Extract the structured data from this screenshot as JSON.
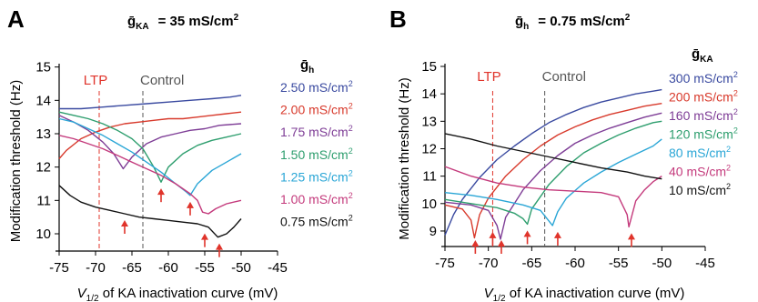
{
  "chart_data": [
    {
      "panel_letter": "A",
      "title_symbol": "ḡ",
      "title_sub": "KA",
      "title_rest": "= 35 mS/cm",
      "title_sup": "2",
      "type": "line",
      "xlabel_italic": "V",
      "xlabel_sub": "1/2",
      "xlabel_rest": " of KA inactivation curve (mV)",
      "ylabel": "Modification threshold (Hz)",
      "xlim": [
        -75,
        -45
      ],
      "ylim": [
        9.7,
        15.1
      ],
      "xticks": [
        -75,
        -70,
        -65,
        -60,
        -55,
        -50,
        -45
      ],
      "yticks": [
        10,
        11,
        12,
        13,
        14,
        15
      ],
      "xtick_labels": [
        "-75",
        "-70",
        "-65",
        "-60",
        "-55",
        "-50",
        "-45"
      ],
      "ytick_labels": [
        "10",
        "11",
        "12",
        "13",
        "14",
        "15"
      ],
      "legend_header_symbol": "ḡ",
      "legend_header_sub": "h",
      "markers": [
        {
          "label": "LTP",
          "x": -69.5,
          "color": "#e0342b"
        },
        {
          "label": "Control",
          "x": -63.5,
          "color": "#555555"
        }
      ],
      "arrows_x": [
        -66,
        -61,
        -57,
        -55,
        -53
      ],
      "arrow_color": "#e0342b",
      "series": [
        {
          "name": "2.50 mS/cm",
          "sup": "2",
          "color": "#3a4aa0",
          "x": [
            -75,
            -72,
            -69,
            -66,
            -63,
            -60,
            -57,
            -54,
            -51.5,
            -50
          ],
          "y": [
            13.75,
            13.75,
            13.8,
            13.85,
            13.9,
            13.95,
            14.0,
            14.05,
            14.1,
            14.15
          ]
        },
        {
          "name": "2.00 mS/cm",
          "sup": "2",
          "color": "#d83a2c",
          "x": [
            -75,
            -74,
            -72,
            -70,
            -68,
            -66,
            -64,
            -62,
            -60,
            -58,
            -56,
            -54,
            -52,
            -50
          ],
          "y": [
            12.25,
            12.5,
            12.85,
            13.05,
            13.2,
            13.3,
            13.35,
            13.4,
            13.45,
            13.45,
            13.5,
            13.55,
            13.6,
            13.65
          ]
        },
        {
          "name": "1.75 mS/cm",
          "sup": "2",
          "color": "#7e3d96",
          "x": [
            -75,
            -73,
            -71,
            -69,
            -67.5,
            -66.2,
            -65,
            -63,
            -61,
            -59,
            -57,
            -55,
            -53,
            -50
          ],
          "y": [
            13.55,
            13.35,
            13.1,
            12.75,
            12.4,
            11.95,
            12.3,
            12.7,
            12.9,
            13.0,
            13.1,
            13.15,
            13.25,
            13.3
          ]
        },
        {
          "name": "1.50 mS/cm",
          "sup": "2",
          "color": "#2e9e6e",
          "x": [
            -75,
            -73,
            -71,
            -69,
            -67,
            -65,
            -63.5,
            -62,
            -61,
            -60,
            -58,
            -56,
            -54,
            -52,
            -50
          ],
          "y": [
            13.65,
            13.55,
            13.45,
            13.3,
            13.1,
            12.85,
            12.55,
            12.0,
            11.55,
            12.0,
            12.4,
            12.65,
            12.8,
            12.9,
            13.0
          ]
        },
        {
          "name": "1.25 mS/cm",
          "sup": "2",
          "color": "#2aa6d6",
          "x": [
            -75,
            -73,
            -71,
            -69,
            -67,
            -65,
            -63,
            -61,
            -59,
            -57.5,
            -57,
            -56,
            -54,
            -52,
            -50
          ],
          "y": [
            13.45,
            13.35,
            13.15,
            12.95,
            12.7,
            12.45,
            12.15,
            11.85,
            11.5,
            11.25,
            11.15,
            11.5,
            11.9,
            12.15,
            12.4
          ]
        },
        {
          "name": "1.00 mS/cm",
          "sup": "2",
          "color": "#c43a7c",
          "x": [
            -75,
            -73,
            -71,
            -69,
            -67,
            -65,
            -63,
            -61,
            -59,
            -57,
            -56,
            -55.3,
            -54.5,
            -53.5,
            -52,
            -50
          ],
          "y": [
            12.95,
            12.85,
            12.7,
            12.55,
            12.35,
            12.15,
            11.95,
            11.75,
            11.5,
            11.2,
            11.0,
            10.65,
            10.6,
            10.75,
            10.9,
            11.0
          ]
        },
        {
          "name": "0.75 mS/cm",
          "sup": "2",
          "color": "#111111",
          "x": [
            -75,
            -73.5,
            -72,
            -70,
            -68,
            -66,
            -64,
            -62,
            -60,
            -58,
            -56,
            -54.5,
            -53.2,
            -52,
            -51,
            -50
          ],
          "y": [
            11.45,
            11.15,
            10.95,
            10.8,
            10.7,
            10.6,
            10.5,
            10.45,
            10.4,
            10.35,
            10.3,
            10.2,
            9.9,
            10.0,
            10.2,
            10.45
          ]
        }
      ]
    },
    {
      "panel_letter": "B",
      "title_symbol": "ḡ",
      "title_sub": "h",
      "title_rest": "= 0.75 mS/cm",
      "title_sup": "2",
      "type": "line",
      "xlabel_italic": "V",
      "xlabel_sub": "1/2",
      "xlabel_rest": " of KA inactivation curve (mV)",
      "ylabel": "Modification threshold (Hz)",
      "xlim": [
        -75,
        -45
      ],
      "ylim": [
        8.7,
        15.1
      ],
      "xticks": [
        -75,
        -70,
        -65,
        -60,
        -55,
        -50,
        -45
      ],
      "yticks": [
        9,
        10,
        11,
        12,
        13,
        14,
        15
      ],
      "xtick_labels": [
        "-75",
        "-70",
        "-65",
        "-60",
        "-55",
        "-50",
        "-45"
      ],
      "ytick_labels": [
        "9",
        "10",
        "11",
        "12",
        "13",
        "14",
        "15"
      ],
      "legend_header_symbol": "ḡ",
      "legend_header_sub": "KA",
      "markers": [
        {
          "label": "LTP",
          "x": -69.5,
          "color": "#e0342b"
        },
        {
          "label": "Control",
          "x": -63.5,
          "color": "#555555"
        }
      ],
      "arrows_x": [
        -71.5,
        -69.5,
        -68.5,
        -65.5,
        -62,
        -53.5
      ],
      "arrow_color": "#e0342b",
      "series": [
        {
          "name": "300 mS/cm",
          "sup": "2",
          "color": "#3a4aa0",
          "x": [
            -75,
            -74,
            -73,
            -72,
            -71,
            -69,
            -67,
            -65,
            -63,
            -61,
            -59,
            -57,
            -55,
            -53,
            -51,
            -50
          ],
          "y": [
            8.85,
            9.6,
            10.15,
            10.55,
            10.95,
            11.6,
            12.1,
            12.55,
            12.95,
            13.25,
            13.5,
            13.7,
            13.85,
            14.0,
            14.1,
            14.15
          ]
        },
        {
          "name": "200 mS/cm",
          "sup": "2",
          "color": "#d83a2c",
          "x": [
            -75,
            -73,
            -72,
            -71.6,
            -71,
            -70,
            -68,
            -66,
            -64,
            -62,
            -60,
            -58,
            -56,
            -54,
            -52,
            -50
          ],
          "y": [
            9.95,
            9.8,
            9.4,
            8.75,
            9.6,
            10.2,
            11.0,
            11.6,
            12.1,
            12.5,
            12.8,
            13.05,
            13.25,
            13.4,
            13.55,
            13.65
          ]
        },
        {
          "name": "160 mS/cm",
          "sup": "2",
          "color": "#7e3d96",
          "x": [
            -75,
            -72,
            -70,
            -69,
            -68.6,
            -68,
            -66,
            -64,
            -62,
            -60,
            -58,
            -56,
            -54,
            -52,
            -50
          ],
          "y": [
            10.05,
            9.95,
            9.75,
            9.2,
            8.7,
            9.5,
            10.5,
            11.2,
            11.75,
            12.2,
            12.5,
            12.75,
            12.95,
            13.15,
            13.3
          ]
        },
        {
          "name": "120 mS/cm",
          "sup": "2",
          "color": "#2e9e6e",
          "x": [
            -75,
            -72,
            -69,
            -67,
            -66,
            -65.5,
            -65,
            -63,
            -61,
            -59,
            -57,
            -55,
            -53,
            -51,
            -50
          ],
          "y": [
            10.15,
            10.0,
            9.85,
            9.65,
            9.45,
            9.25,
            9.8,
            10.7,
            11.35,
            11.85,
            12.2,
            12.5,
            12.75,
            12.95,
            13.0
          ]
        },
        {
          "name": "80 mS/cm",
          "sup": "2",
          "color": "#2aa6d6",
          "x": [
            -75,
            -72,
            -69,
            -66,
            -64,
            -62.6,
            -62,
            -61,
            -59,
            -57,
            -55,
            -53,
            -51,
            -50
          ],
          "y": [
            10.4,
            10.3,
            10.15,
            9.95,
            9.75,
            9.2,
            9.7,
            10.2,
            10.75,
            11.15,
            11.5,
            11.8,
            12.1,
            12.35
          ]
        },
        {
          "name": "40 mS/cm",
          "sup": "2",
          "color": "#c43a7c",
          "x": [
            -75,
            -72,
            -69,
            -66,
            -63,
            -60,
            -57,
            -55,
            -54,
            -53.8,
            -53,
            -52,
            -51,
            -50
          ],
          "y": [
            11.35,
            11.0,
            10.75,
            10.6,
            10.5,
            10.45,
            10.4,
            10.25,
            9.6,
            9.15,
            10.1,
            10.5,
            10.8,
            11.0
          ]
        },
        {
          "name": "10 mS/cm",
          "sup": "2",
          "color": "#111111",
          "x": [
            -75,
            -72,
            -69,
            -66,
            -63,
            -60,
            -57,
            -54,
            -52,
            -50
          ],
          "y": [
            12.55,
            12.35,
            12.1,
            11.9,
            11.7,
            11.5,
            11.3,
            11.15,
            11.0,
            10.9
          ]
        }
      ]
    }
  ]
}
